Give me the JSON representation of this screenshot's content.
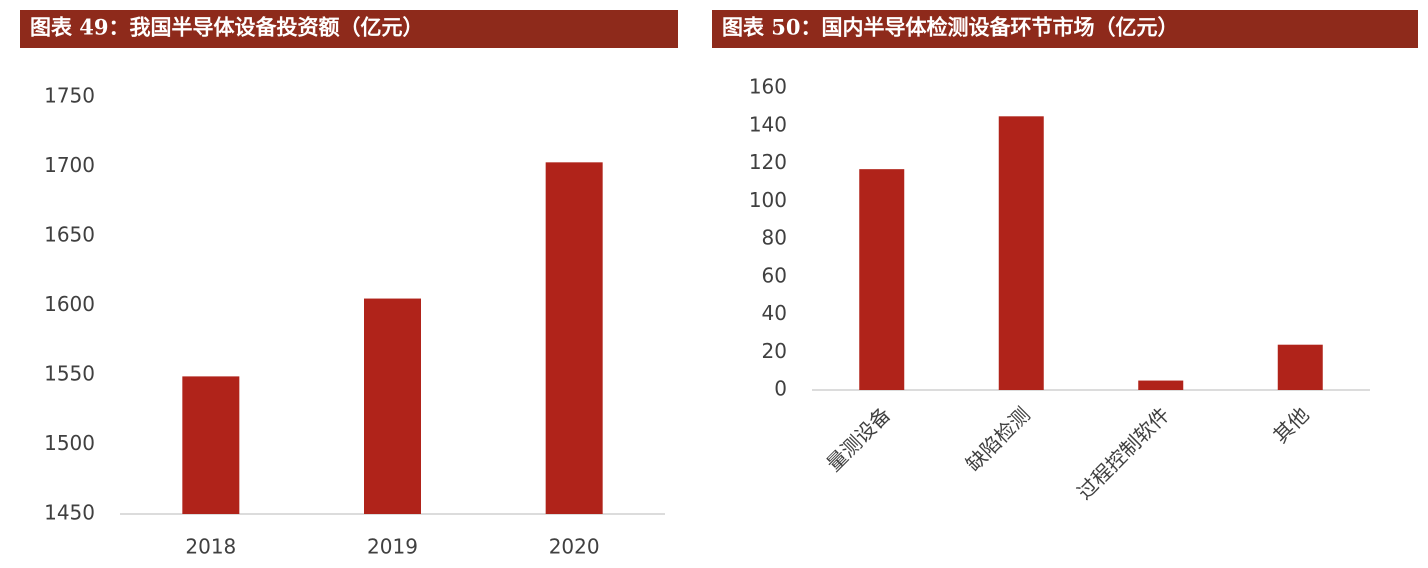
{
  "chart_data": [
    {
      "type": "bar",
      "title": "图表 49：我国半导体设备投资额（亿元）",
      "categories": [
        "2018",
        "2019",
        "2020"
      ],
      "values": [
        1549,
        1605,
        1703
      ],
      "color": "#b0231a",
      "ylim": [
        1450,
        1750
      ],
      "yticks": [
        1450,
        1500,
        1550,
        1600,
        1650,
        1700,
        1750
      ],
      "grid": false
    },
    {
      "type": "bar",
      "title": "图表 50：国内半导体检测设备环节市场（亿元）",
      "categories": [
        "量测设备",
        "缺陷检测",
        "过程控制软件",
        "其他"
      ],
      "values": [
        117,
        145,
        5,
        24
      ],
      "color": "#b0231a",
      "ylim": [
        0,
        160
      ],
      "yticks": [
        0,
        20,
        40,
        60,
        80,
        100,
        120,
        140,
        160
      ],
      "grid": false
    }
  ]
}
